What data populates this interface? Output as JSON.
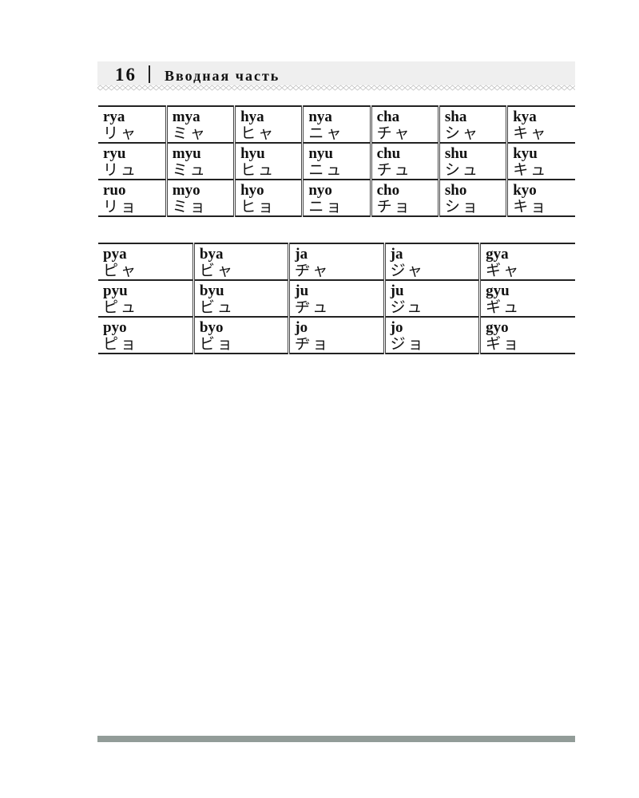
{
  "header": {
    "page_number": "16",
    "section_title": "Вводная часть"
  },
  "table1": [
    [
      {
        "romaji": "rya",
        "kana": "リャ"
      },
      {
        "romaji": "mya",
        "kana": "ミャ"
      },
      {
        "romaji": "hya",
        "kana": "ヒャ"
      },
      {
        "romaji": "nya",
        "kana": "ニャ"
      },
      {
        "romaji": "cha",
        "kana": "チャ"
      },
      {
        "romaji": "sha",
        "kana": "シャ"
      },
      {
        "romaji": "kya",
        "kana": "キャ"
      }
    ],
    [
      {
        "romaji": "ryu",
        "kana": "リュ"
      },
      {
        "romaji": "myu",
        "kana": "ミュ"
      },
      {
        "romaji": "hyu",
        "kana": "ヒュ"
      },
      {
        "romaji": "nyu",
        "kana": "ニュ"
      },
      {
        "romaji": "chu",
        "kana": "チュ"
      },
      {
        "romaji": "shu",
        "kana": "シュ"
      },
      {
        "romaji": "kyu",
        "kana": "キュ"
      }
    ],
    [
      {
        "romaji": "ruo",
        "kana": "リョ"
      },
      {
        "romaji": "myo",
        "kana": "ミョ"
      },
      {
        "romaji": "hyo",
        "kana": "ヒョ"
      },
      {
        "romaji": "nyo",
        "kana": "ニョ"
      },
      {
        "romaji": "cho",
        "kana": "チョ"
      },
      {
        "romaji": "sho",
        "kana": "ショ"
      },
      {
        "romaji": "kyo",
        "kana": "キョ"
      }
    ]
  ],
  "table2": [
    [
      {
        "romaji": "pya",
        "kana": "ピャ"
      },
      {
        "romaji": "bya",
        "kana": "ビャ"
      },
      {
        "romaji": "ja",
        "kana": "ヂャ"
      },
      {
        "romaji": "ja",
        "kana": "ジャ"
      },
      {
        "romaji": "gya",
        "kana": "ギャ"
      }
    ],
    [
      {
        "romaji": "pyu",
        "kana": "ピュ"
      },
      {
        "romaji": "byu",
        "kana": "ビュ"
      },
      {
        "romaji": "ju",
        "kana": "ヂュ"
      },
      {
        "romaji": "ju",
        "kana": "ジュ"
      },
      {
        "romaji": "gyu",
        "kana": "ギュ"
      }
    ],
    [
      {
        "romaji": "pyo",
        "kana": "ピョ"
      },
      {
        "romaji": "byo",
        "kana": "ビョ"
      },
      {
        "romaji": "jo",
        "kana": "ヂョ"
      },
      {
        "romaji": "jo",
        "kana": "ジョ"
      },
      {
        "romaji": "gyo",
        "kana": "ギョ"
      }
    ]
  ],
  "colors": {
    "header_band": "#efefef",
    "footer_bar": "#929c98"
  }
}
